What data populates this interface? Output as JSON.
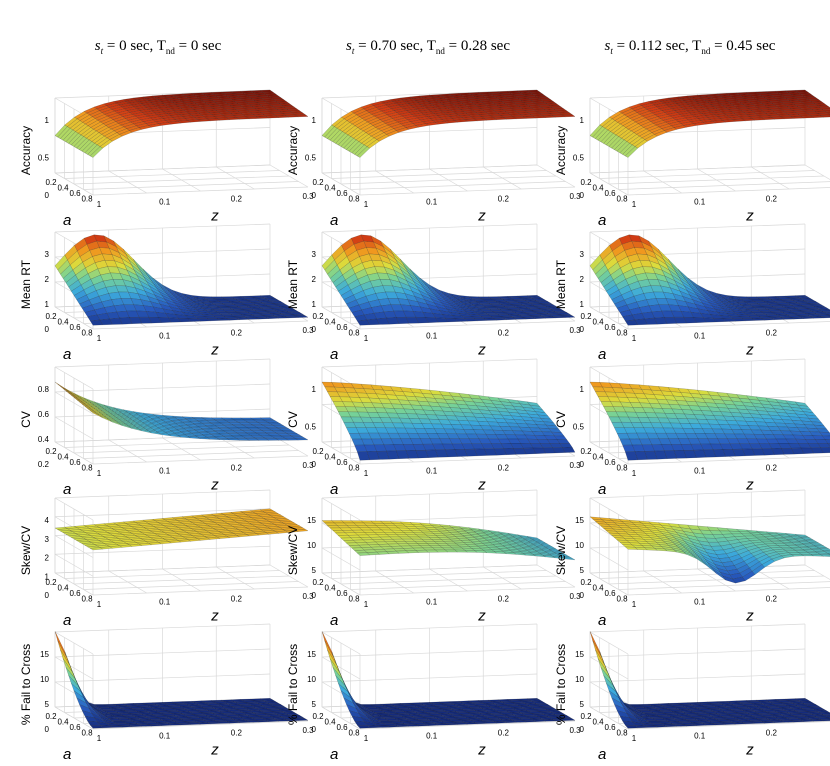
{
  "figure": {
    "columns": [
      {
        "s": "s",
        "s_sub": "t",
        "s_rest": " = 0 sec, T",
        "t_sub": "nd",
        "t_rest": " = 0 sec"
      },
      {
        "s": "s",
        "s_sub": "t",
        "s_rest": " = 0.70 sec, T",
        "t_sub": "nd",
        "t_rest": " = 0.28 sec"
      },
      {
        "s": "s",
        "s_sub": "t",
        "s_rest": " = 0.112 sec, T",
        "t_sub": "nd",
        "t_rest": " = 0.45 sec"
      }
    ],
    "rows": [
      {
        "ylabel": "Accuracy"
      },
      {
        "ylabel": "Mean RT"
      },
      {
        "ylabel": "CV"
      },
      {
        "ylabel": "Skew/CV"
      },
      {
        "ylabel": "% Fail to Cross"
      }
    ],
    "axis_labels": {
      "a": "a",
      "z": "z"
    },
    "colors": {
      "low": "#1a3fa0",
      "mid_low": "#2aa8d8",
      "mid": "#c8d840",
      "mid_high": "#f0a020",
      "high": "#8a1a10"
    }
  },
  "chart_data": [
    {
      "type": "surface",
      "panel": "accuracy-col1",
      "ylabel": "Accuracy",
      "zticks": [
        0,
        0.5,
        1
      ],
      "zlim": [
        0,
        1
      ],
      "aticks": [
        0.2,
        0.4,
        0.6,
        0.8,
        1
      ],
      "zticks_x": [
        0.1,
        0.2,
        0.3
      ],
      "shape": "plateau",
      "base": 0.5,
      "peak": 1.0
    },
    {
      "type": "surface",
      "panel": "accuracy-col2",
      "ylabel": "Accuracy",
      "zticks": [
        0,
        0.5,
        1
      ],
      "zlim": [
        0,
        1
      ],
      "aticks": [
        0.2,
        0.4,
        0.6,
        0.8,
        1
      ],
      "zticks_x": [
        0.1,
        0.2,
        0.3
      ],
      "shape": "plateau",
      "base": 0.5,
      "peak": 1.0
    },
    {
      "type": "surface",
      "panel": "accuracy-col3",
      "ylabel": "Accuracy",
      "zticks": [
        0,
        0.5,
        1
      ],
      "zlim": [
        0,
        1
      ],
      "aticks": [
        0.2,
        0.4,
        0.6,
        0.8,
        1
      ],
      "zticks_x": [
        0.1,
        0.2,
        0.3
      ],
      "shape": "plateau",
      "base": 0.5,
      "peak": 1.0
    },
    {
      "type": "surface",
      "panel": "meanrt-col1",
      "ylabel": "Mean RT",
      "zticks": [
        0,
        1,
        2,
        3
      ],
      "zlim": [
        0,
        3
      ],
      "aticks": [
        0.2,
        0.4,
        0.6,
        0.8,
        1
      ],
      "zticks_x": [
        0.1,
        0.2,
        0.3
      ],
      "shape": "peak-back",
      "base": 0.0,
      "peak": 2.6
    },
    {
      "type": "surface",
      "panel": "meanrt-col2",
      "ylabel": "Mean RT",
      "zticks": [
        0,
        1,
        2,
        3
      ],
      "zlim": [
        0,
        3
      ],
      "aticks": [
        0.2,
        0.4,
        0.6,
        0.8,
        1
      ],
      "zticks_x": [
        0.1,
        0.2,
        0.3
      ],
      "shape": "peak-back",
      "base": 0.3,
      "peak": 2.8
    },
    {
      "type": "surface",
      "panel": "meanrt-col3",
      "ylabel": "Mean RT",
      "zticks": [
        0,
        1,
        2,
        3
      ],
      "zlim": [
        0,
        3
      ],
      "aticks": [
        0.2,
        0.4,
        0.6,
        0.8,
        1
      ],
      "zticks_x": [
        0.1,
        0.2,
        0.3
      ],
      "shape": "peak-back",
      "base": 0.45,
      "peak": 2.9
    },
    {
      "type": "surface",
      "panel": "cv-col1",
      "ylabel": "CV",
      "zticks": [
        0.2,
        0.4,
        0.6,
        0.8
      ],
      "zlim": [
        0.2,
        0.8
      ],
      "aticks": [
        0.2,
        0.4,
        0.6,
        0.8,
        1
      ],
      "zticks_x": [
        0.1,
        0.2,
        0.3
      ],
      "shape": "ridge-left",
      "base": 0.2,
      "peak": 0.8
    },
    {
      "type": "surface",
      "panel": "cv-col2",
      "ylabel": "CV",
      "zticks": [
        0,
        0.5,
        1
      ],
      "zlim": [
        0,
        1
      ],
      "aticks": [
        0.2,
        0.4,
        0.6,
        0.8,
        1
      ],
      "zticks_x": [
        0.1,
        0.2,
        0.3
      ],
      "shape": "dome-back",
      "base": 0.0,
      "peak": 0.78
    },
    {
      "type": "surface",
      "panel": "cv-col3",
      "ylabel": "CV",
      "zticks": [
        0,
        0.5,
        1
      ],
      "zlim": [
        0,
        1
      ],
      "aticks": [
        0.2,
        0.4,
        0.6,
        0.8,
        1
      ],
      "zticks_x": [
        0.1,
        0.2,
        0.3
      ],
      "shape": "dome-back",
      "base": 0.0,
      "peak": 0.75
    },
    {
      "type": "surface",
      "panel": "skewcv-col1",
      "ylabel": "Skew/CV",
      "zticks": [
        0,
        1,
        2,
        3,
        4
      ],
      "zlim": [
        0,
        4
      ],
      "aticks": [
        0.2,
        0.4,
        0.6,
        0.8,
        1
      ],
      "zticks_x": [
        0.1,
        0.2,
        0.3
      ],
      "shape": "flat-high",
      "base": 2.3,
      "peak": 3.0
    },
    {
      "type": "surface",
      "panel": "skewcv-col2",
      "ylabel": "Skew/CV",
      "zticks": [
        0,
        5,
        10,
        15
      ],
      "zlim": [
        0,
        15
      ],
      "aticks": [
        0.2,
        0.4,
        0.6,
        0.8,
        1
      ],
      "zticks_x": [
        0.1,
        0.2,
        0.3
      ],
      "shape": "saddle",
      "base": 4.0,
      "peak": 10.0
    },
    {
      "type": "surface",
      "panel": "skewcv-col3",
      "ylabel": "Skew/CV",
      "zticks": [
        0,
        5,
        10,
        15
      ],
      "zlim": [
        0,
        15
      ],
      "aticks": [
        0.2,
        0.4,
        0.6,
        0.8,
        1
      ],
      "zticks_x": [
        0.1,
        0.2,
        0.3
      ],
      "shape": "saddle-dip",
      "base": 2.0,
      "peak": 10.0
    },
    {
      "type": "surface",
      "panel": "fail-col1",
      "ylabel": "% Fail to Cross",
      "zticks": [
        0,
        5,
        10,
        15
      ],
      "zlim": [
        0,
        15
      ],
      "aticks": [
        0.2,
        0.4,
        0.6,
        0.8,
        1
      ],
      "zticks_x": [
        0.1,
        0.2,
        0.3
      ],
      "shape": "spike",
      "base": 0.0,
      "peak": 18.0
    },
    {
      "type": "surface",
      "panel": "fail-col2",
      "ylabel": "% Fail to Cross",
      "zticks": [
        0,
        5,
        10,
        15
      ],
      "zlim": [
        0,
        15
      ],
      "aticks": [
        0.2,
        0.4,
        0.6,
        0.8,
        1
      ],
      "zticks_x": [
        0.1,
        0.2,
        0.3
      ],
      "shape": "spike",
      "base": 0.0,
      "peak": 18.0
    },
    {
      "type": "surface",
      "panel": "fail-col3",
      "ylabel": "% Fail to Cross",
      "zticks": [
        0,
        5,
        10,
        15
      ],
      "zlim": [
        0,
        15
      ],
      "aticks": [
        0.2,
        0.4,
        0.6,
        0.8,
        1
      ],
      "zticks_x": [
        0.1,
        0.2,
        0.3
      ],
      "shape": "spike",
      "base": 0.0,
      "peak": 18.0
    }
  ]
}
